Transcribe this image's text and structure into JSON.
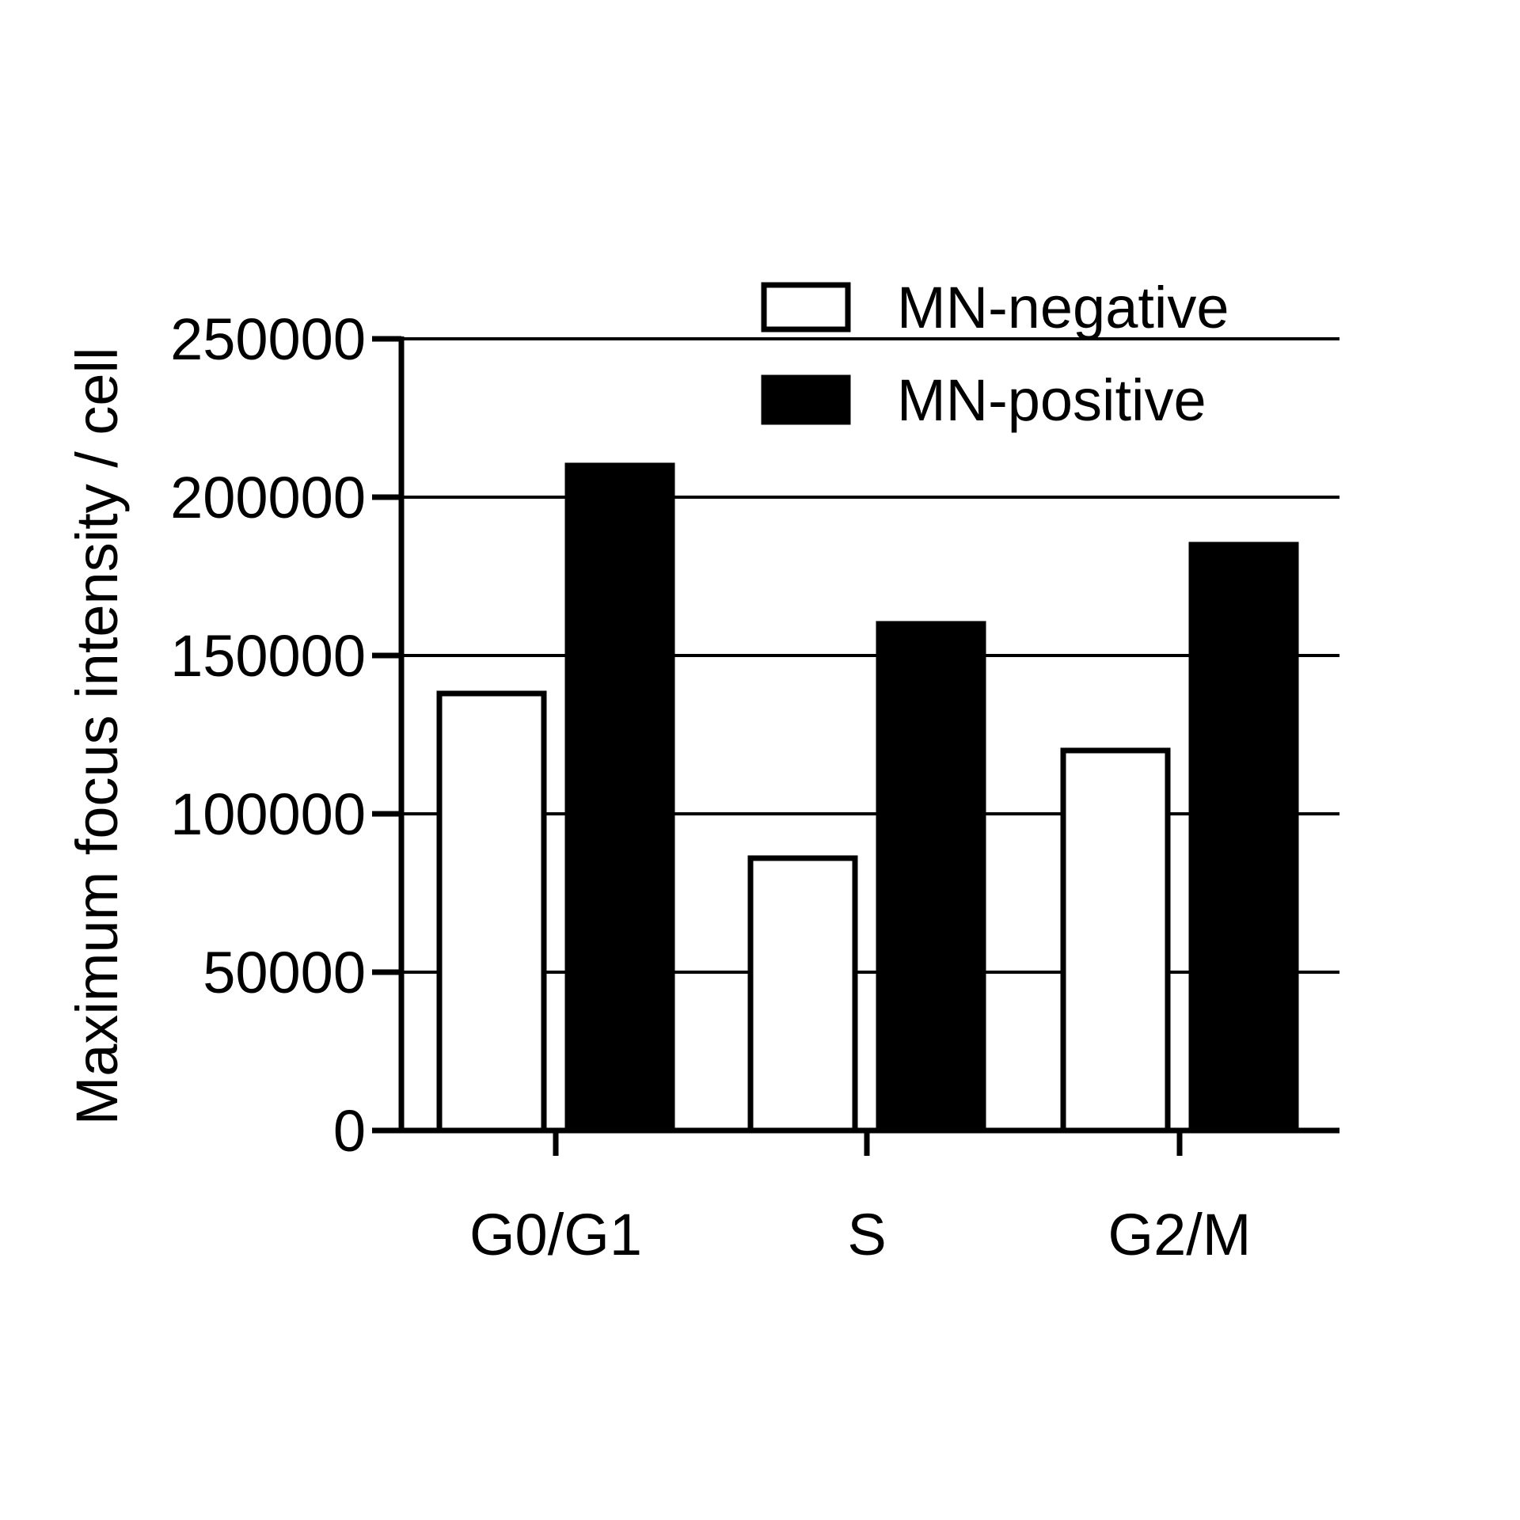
{
  "chart_data": {
    "type": "bar",
    "title": "",
    "xlabel": "",
    "ylabel": "Maximum focus intensity / cell",
    "categories": [
      "G0/G1",
      "S",
      "G2/M"
    ],
    "ylim": [
      0,
      250000
    ],
    "yticks": [
      0,
      50000,
      100000,
      150000,
      200000,
      250000
    ],
    "ytick_labels": [
      "0",
      "50000",
      "100000",
      "150000",
      "200000",
      "250000"
    ],
    "grid": "horizontal",
    "legend_position": "top-right",
    "series": [
      {
        "name": "MN-negative",
        "values": [
          138000,
          86000,
          120000
        ],
        "fill": "#ffffff",
        "stroke": "#000000"
      },
      {
        "name": "MN-positive",
        "values": [
          210000,
          160000,
          185000
        ],
        "fill": "#000000",
        "stroke": "#000000"
      }
    ]
  }
}
